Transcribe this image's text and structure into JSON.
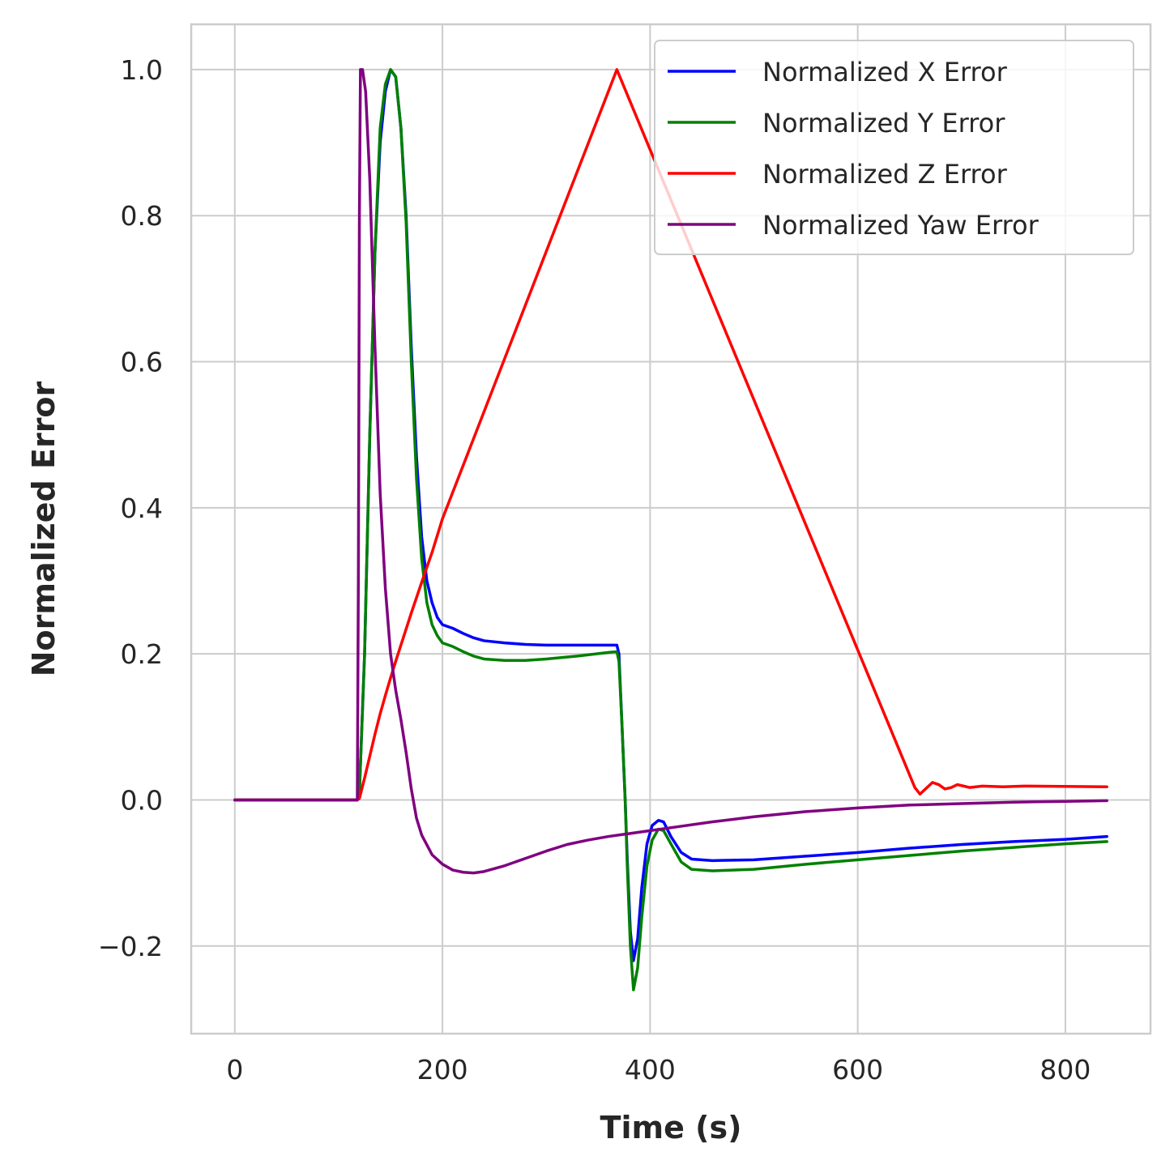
{
  "chart_data": {
    "type": "line",
    "title": "",
    "xlabel": "Time (s)",
    "ylabel": "Normalized Error",
    "xlim": [
      -42,
      882
    ],
    "ylim": [
      -0.32,
      1.062
    ],
    "x_ticks": [
      0,
      200,
      400,
      600,
      800
    ],
    "y_ticks": [
      -0.2,
      0.0,
      0.2,
      0.4,
      0.6,
      0.8,
      1.0
    ],
    "x_tick_labels": [
      "0",
      "200",
      "400",
      "600",
      "800"
    ],
    "y_tick_labels": [
      "−0.2",
      "0.0",
      "0.2",
      "0.4",
      "0.6",
      "0.8",
      "1.0"
    ],
    "grid": true,
    "legend_position": "top-right",
    "series": [
      {
        "name": "Normalized X Error",
        "color": "#0000ff",
        "points": [
          [
            0,
            0
          ],
          [
            118,
            0
          ],
          [
            120,
            0.01
          ],
          [
            125,
            0.2
          ],
          [
            130,
            0.5
          ],
          [
            135,
            0.75
          ],
          [
            140,
            0.9
          ],
          [
            145,
            0.97
          ],
          [
            150,
            1.0
          ],
          [
            155,
            0.99
          ],
          [
            160,
            0.92
          ],
          [
            165,
            0.8
          ],
          [
            170,
            0.62
          ],
          [
            175,
            0.47
          ],
          [
            180,
            0.36
          ],
          [
            185,
            0.3
          ],
          [
            190,
            0.27
          ],
          [
            195,
            0.25
          ],
          [
            200,
            0.24
          ],
          [
            210,
            0.235
          ],
          [
            220,
            0.228
          ],
          [
            230,
            0.222
          ],
          [
            240,
            0.218
          ],
          [
            260,
            0.215
          ],
          [
            280,
            0.213
          ],
          [
            300,
            0.212
          ],
          [
            330,
            0.212
          ],
          [
            368,
            0.212
          ],
          [
            370,
            0.2
          ],
          [
            373,
            0.1
          ],
          [
            376,
            0.0
          ],
          [
            378,
            -0.08
          ],
          [
            381,
            -0.18
          ],
          [
            384,
            -0.22
          ],
          [
            388,
            -0.19
          ],
          [
            392,
            -0.12
          ],
          [
            397,
            -0.06
          ],
          [
            402,
            -0.035
          ],
          [
            408,
            -0.028
          ],
          [
            413,
            -0.03
          ],
          [
            420,
            -0.05
          ],
          [
            430,
            -0.072
          ],
          [
            440,
            -0.081
          ],
          [
            460,
            -0.083
          ],
          [
            500,
            -0.082
          ],
          [
            550,
            -0.077
          ],
          [
            600,
            -0.072
          ],
          [
            650,
            -0.066
          ],
          [
            700,
            -0.061
          ],
          [
            750,
            -0.057
          ],
          [
            800,
            -0.054
          ],
          [
            840,
            -0.05
          ]
        ]
      },
      {
        "name": "Normalized Y Error",
        "color": "#008000",
        "points": [
          [
            0,
            0
          ],
          [
            118,
            0
          ],
          [
            120,
            0.01
          ],
          [
            125,
            0.2
          ],
          [
            130,
            0.5
          ],
          [
            135,
            0.75
          ],
          [
            140,
            0.92
          ],
          [
            145,
            0.98
          ],
          [
            150,
            1.0
          ],
          [
            155,
            0.99
          ],
          [
            160,
            0.92
          ],
          [
            165,
            0.79
          ],
          [
            170,
            0.6
          ],
          [
            175,
            0.44
          ],
          [
            180,
            0.33
          ],
          [
            185,
            0.27
          ],
          [
            190,
            0.24
          ],
          [
            195,
            0.225
          ],
          [
            200,
            0.215
          ],
          [
            210,
            0.21
          ],
          [
            220,
            0.203
          ],
          [
            230,
            0.197
          ],
          [
            240,
            0.193
          ],
          [
            260,
            0.191
          ],
          [
            280,
            0.191
          ],
          [
            300,
            0.193
          ],
          [
            330,
            0.197
          ],
          [
            360,
            0.202
          ],
          [
            368,
            0.203
          ],
          [
            370,
            0.19
          ],
          [
            373,
            0.1
          ],
          [
            376,
            0.0
          ],
          [
            378,
            -0.09
          ],
          [
            381,
            -0.2
          ],
          [
            384,
            -0.26
          ],
          [
            388,
            -0.23
          ],
          [
            392,
            -0.16
          ],
          [
            397,
            -0.09
          ],
          [
            402,
            -0.055
          ],
          [
            408,
            -0.04
          ],
          [
            413,
            -0.042
          ],
          [
            420,
            -0.06
          ],
          [
            430,
            -0.085
          ],
          [
            440,
            -0.095
          ],
          [
            460,
            -0.097
          ],
          [
            500,
            -0.095
          ],
          [
            550,
            -0.088
          ],
          [
            600,
            -0.082
          ],
          [
            650,
            -0.076
          ],
          [
            700,
            -0.07
          ],
          [
            750,
            -0.065
          ],
          [
            800,
            -0.06
          ],
          [
            840,
            -0.057
          ]
        ]
      },
      {
        "name": "Normalized Z Error",
        "color": "#ff0000",
        "points": [
          [
            0,
            0
          ],
          [
            118,
            0
          ],
          [
            120,
            0.002
          ],
          [
            125,
            0.03
          ],
          [
            130,
            0.06
          ],
          [
            135,
            0.09
          ],
          [
            140,
            0.118
          ],
          [
            145,
            0.143
          ],
          [
            150,
            0.167
          ],
          [
            155,
            0.19
          ],
          [
            160,
            0.212
          ],
          [
            165,
            0.234
          ],
          [
            170,
            0.256
          ],
          [
            180,
            0.298
          ],
          [
            190,
            0.339
          ],
          [
            200,
            0.385
          ],
          [
            368,
            1.0
          ],
          [
            655,
            0.017
          ],
          [
            660,
            0.008
          ],
          [
            666,
            0.016
          ],
          [
            672,
            0.024
          ],
          [
            678,
            0.021
          ],
          [
            684,
            0.015
          ],
          [
            690,
            0.017
          ],
          [
            696,
            0.021
          ],
          [
            702,
            0.019
          ],
          [
            708,
            0.017
          ],
          [
            714,
            0.018
          ],
          [
            720,
            0.019
          ],
          [
            740,
            0.018
          ],
          [
            760,
            0.019
          ],
          [
            840,
            0.018
          ]
        ]
      },
      {
        "name": "Normalized Yaw Error",
        "color": "#800080",
        "points": [
          [
            0,
            0
          ],
          [
            118,
            0
          ],
          [
            119,
            0.3
          ],
          [
            120,
            0.8
          ],
          [
            121,
            1.0
          ],
          [
            123,
            1.0
          ],
          [
            126,
            0.97
          ],
          [
            130,
            0.85
          ],
          [
            135,
            0.62
          ],
          [
            140,
            0.42
          ],
          [
            145,
            0.29
          ],
          [
            150,
            0.2
          ],
          [
            155,
            0.15
          ],
          [
            160,
            0.11
          ],
          [
            165,
            0.065
          ],
          [
            170,
            0.015
          ],
          [
            175,
            -0.025
          ],
          [
            180,
            -0.048
          ],
          [
            190,
            -0.075
          ],
          [
            200,
            -0.088
          ],
          [
            210,
            -0.096
          ],
          [
            220,
            -0.099
          ],
          [
            230,
            -0.1
          ],
          [
            240,
            -0.098
          ],
          [
            260,
            -0.09
          ],
          [
            280,
            -0.08
          ],
          [
            300,
            -0.07
          ],
          [
            320,
            -0.061
          ],
          [
            340,
            -0.055
          ],
          [
            360,
            -0.05
          ],
          [
            380,
            -0.046
          ],
          [
            400,
            -0.042
          ],
          [
            430,
            -0.036
          ],
          [
            460,
            -0.03
          ],
          [
            500,
            -0.023
          ],
          [
            550,
            -0.016
          ],
          [
            600,
            -0.011
          ],
          [
            650,
            -0.007
          ],
          [
            700,
            -0.005
          ],
          [
            750,
            -0.003
          ],
          [
            800,
            -0.002
          ],
          [
            840,
            -0.001
          ]
        ]
      }
    ]
  }
}
